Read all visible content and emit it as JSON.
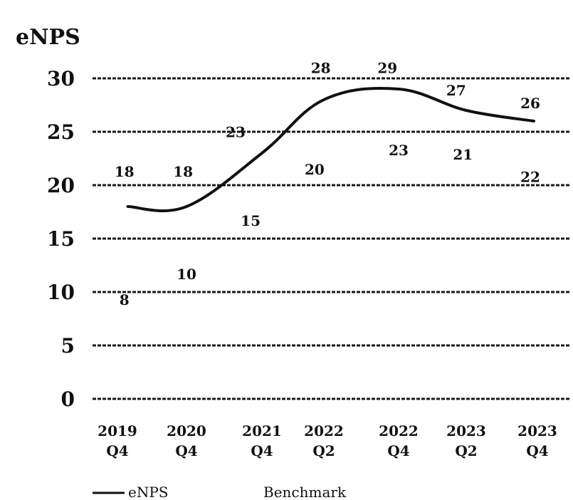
{
  "chart_data": {
    "type": "line",
    "ylabel": "eNPS",
    "ylim": [
      0,
      30
    ],
    "yticks": [
      "0",
      "5",
      "10",
      "15",
      "20",
      "25",
      "30"
    ],
    "categories": [
      [
        "2019",
        "Q4"
      ],
      [
        "2020",
        "Q4"
      ],
      [
        "2021",
        "Q4"
      ],
      [
        "2022",
        "Q2"
      ],
      [
        "2022",
        "Q4"
      ],
      [
        "2023",
        "Q2"
      ],
      [
        "2023",
        "Q4"
      ]
    ],
    "series": [
      {
        "name": "eNPS",
        "x": [
          0.15,
          1,
          2,
          3,
          4,
          5,
          5.95
        ],
        "values": [
          18,
          18,
          23,
          28,
          29,
          27,
          26
        ],
        "labels": [
          {
            "text": "18",
            "x": 0.1,
            "y": 20.8
          },
          {
            "text": "18",
            "x": 0.95,
            "y": 20.8
          },
          {
            "text": "23",
            "x": 1.65,
            "y": 24.5
          },
          {
            "text": "28",
            "x": 2.95,
            "y": 30.5
          },
          {
            "text": "29",
            "x": 3.85,
            "y": 30.5
          },
          {
            "text": "27",
            "x": 4.85,
            "y": 28.4
          },
          {
            "text": "26",
            "x": 5.9,
            "y": 27.2
          }
        ]
      },
      {
        "name": "Benchmark",
        "labels": [
          {
            "text": "8",
            "x": 0.1,
            "y": 8.8
          },
          {
            "text": "10",
            "x": 1.0,
            "y": 11.2
          },
          {
            "text": "15",
            "x": 1.85,
            "y": 16.2
          },
          {
            "text": "20",
            "x": 2.85,
            "y": 21.0
          },
          {
            "text": "23",
            "x": 4.0,
            "y": 22.8
          },
          {
            "text": "21",
            "x": 4.95,
            "y": 22.4
          },
          {
            "text": "22",
            "x": 5.9,
            "y": 20.3
          }
        ]
      }
    ],
    "legend": {
      "position": "bottom",
      "items": [
        "eNPS",
        "Benchmark"
      ]
    },
    "grid": true,
    "colors": {
      "line": "#111111",
      "grid": "#1a1a1a",
      "text": "#111111"
    }
  }
}
